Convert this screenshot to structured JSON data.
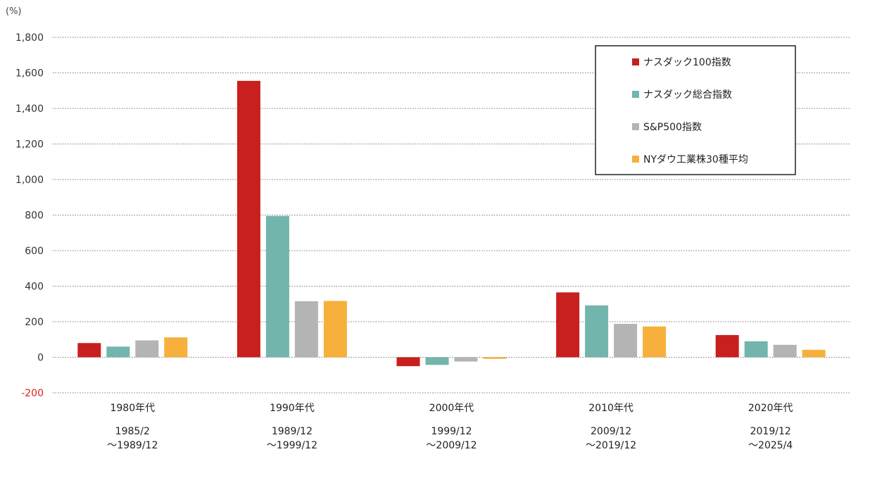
{
  "chart_data": {
    "type": "bar",
    "unit_label": "(%)",
    "ylim": [
      -200,
      1800
    ],
    "yticks": [
      -200,
      0,
      200,
      400,
      600,
      800,
      1000,
      1200,
      1400,
      1600,
      1800
    ],
    "ytick_labels": [
      "-200",
      "0",
      "200",
      "400",
      "600",
      "800",
      "1,000",
      "1,200",
      "1,400",
      "1,600",
      "1,800"
    ],
    "grid": true,
    "legend_position": "top-right",
    "categories": [
      "1980年代",
      "1990年代",
      "2000年代",
      "2010年代",
      "2020年代"
    ],
    "periods": [
      [
        "1985/2",
        "～1989/12"
      ],
      [
        "1989/12",
        "～1999/12"
      ],
      [
        "1999/12",
        "～2009/12"
      ],
      [
        "2009/12",
        "～2019/12"
      ],
      [
        "2019/12",
        "～2025/4"
      ]
    ],
    "series": [
      {
        "name": "ナスダック100指数",
        "color": "#c8201e",
        "values": [
          80,
          1555,
          -50,
          365,
          125
        ]
      },
      {
        "name": "ナスダック総合指数",
        "color": "#72b5ac",
        "values": [
          60,
          795,
          -43,
          292,
          90
        ]
      },
      {
        "name": "S&P500指数",
        "color": "#b4b4b4",
        "values": [
          95,
          315,
          -24,
          188,
          70
        ]
      },
      {
        "name": "NYダウ工業株30種平均",
        "color": "#f7b03c",
        "values": [
          112,
          317,
          -9,
          173,
          42
        ]
      }
    ]
  }
}
